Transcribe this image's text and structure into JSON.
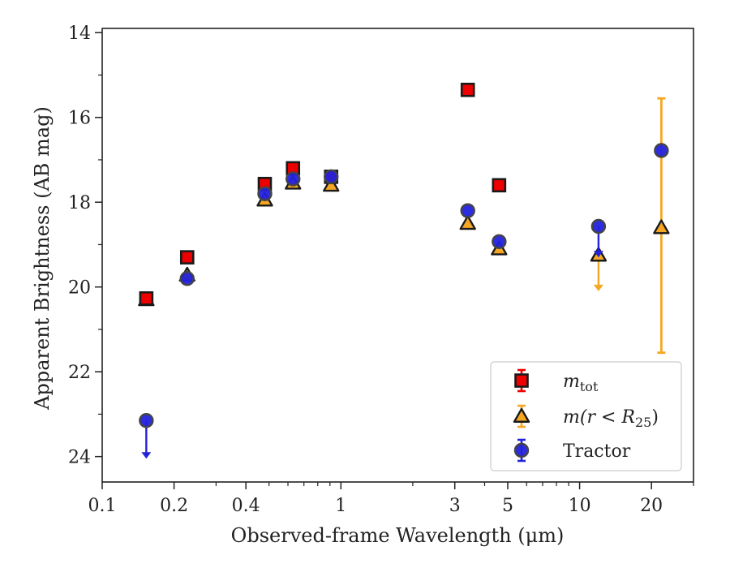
{
  "chart_data": {
    "type": "scatter",
    "xlabel": "Observed-frame Wavelength (μm)",
    "ylabel": "Apparent Brightness (AB mag)",
    "x_scale": "log",
    "xlim": [
      0.1,
      30
    ],
    "ylim": [
      24.6,
      13.9
    ],
    "y_inverted": true,
    "x_ticks": [
      0.1,
      0.2,
      0.4,
      1,
      3,
      5,
      10,
      20
    ],
    "x_tick_labels": [
      "0.1",
      "0.2",
      "0.4",
      "1",
      "3",
      "5",
      "10",
      "20"
    ],
    "y_ticks": [
      14,
      16,
      18,
      20,
      22,
      24
    ],
    "y_tick_labels": [
      "14",
      "16",
      "18",
      "20",
      "22",
      "24"
    ],
    "grid": false,
    "legend_position": "lower-right",
    "series": [
      {
        "name": "m_tot",
        "legend_label": "m",
        "legend_sub": "tot",
        "marker": "square",
        "color": "#ee0000",
        "points": [
          {
            "x": 0.153,
            "y": 20.27
          },
          {
            "x": 0.227,
            "y": 19.3
          },
          {
            "x": 0.48,
            "y": 17.57
          },
          {
            "x": 0.63,
            "y": 17.2
          },
          {
            "x": 0.91,
            "y": 17.4
          },
          {
            "x": 3.4,
            "y": 15.35
          },
          {
            "x": 4.6,
            "y": 17.6
          }
        ]
      },
      {
        "name": "m(r<R25)",
        "legend_label": "m(r < R",
        "legend_sub": "25",
        "legend_tail": ")",
        "marker": "triangle",
        "color": "#f5a623",
        "points": [
          {
            "x": 0.153,
            "y": 20.3
          },
          {
            "x": 0.227,
            "y": 19.72
          },
          {
            "x": 0.48,
            "y": 17.95
          },
          {
            "x": 0.63,
            "y": 17.55
          },
          {
            "x": 0.91,
            "y": 17.6
          },
          {
            "x": 3.4,
            "y": 18.5
          },
          {
            "x": 4.6,
            "y": 19.1
          },
          {
            "x": 12.0,
            "y": 19.25,
            "upper_limit_to": 20.1
          },
          {
            "x": 22.0,
            "y": 18.6,
            "err_low": 15.55,
            "err_high": 21.55
          }
        ]
      },
      {
        "name": "Tractor",
        "legend_label": "Tractor",
        "marker": "circle",
        "color": "#2222dd",
        "points": [
          {
            "x": 0.153,
            "y": 23.15,
            "upper_limit_to": 24.05
          },
          {
            "x": 0.227,
            "y": 19.8
          },
          {
            "x": 0.48,
            "y": 17.8
          },
          {
            "x": 0.63,
            "y": 17.45
          },
          {
            "x": 0.91,
            "y": 17.4
          },
          {
            "x": 3.4,
            "y": 18.2
          },
          {
            "x": 4.6,
            "y": 18.93
          },
          {
            "x": 12.0,
            "y": 18.57,
            "upper_limit_to": 19.3
          },
          {
            "x": 22.0,
            "y": 16.78
          }
        ]
      }
    ]
  }
}
